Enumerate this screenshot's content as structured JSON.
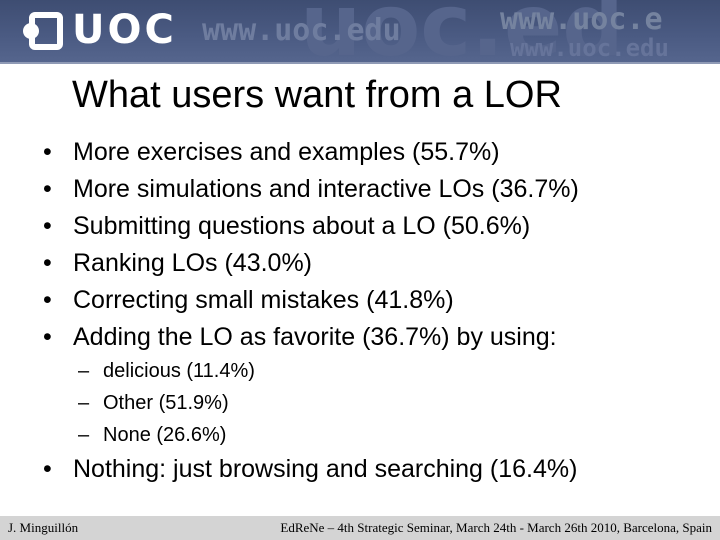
{
  "header": {
    "logo_text": "UOC",
    "url_text": "www.uoc.edu",
    "watermark_text": "uoc.ed",
    "right_url_1": "www.uoc.e",
    "right_url_2": "www.uoc.edu",
    "logo_icon": "uoc-logo-icon",
    "colors": {
      "background": "#4a5a82",
      "logo": "#ffffff"
    }
  },
  "slide": {
    "title": "What users want from a LOR",
    "bullet_marker": "•",
    "sub_marker": "–",
    "bullets": [
      "More exercises and examples (55.7%)",
      "More simulations and interactive LOs (36.7%)",
      "Submitting questions about a LO (50.6%)",
      "Ranking LOs (43.0%)",
      "Correcting small mistakes (41.8%)",
      "Adding the LO as favorite (36.7%) by using:"
    ],
    "sub_bullets": [
      "delicious (11.4%)",
      "Other (51.9%)",
      "None (26.6%)"
    ],
    "last_bullet": "Nothing: just browsing and searching (16.4%)"
  },
  "footer": {
    "author": "J. Minguillón",
    "event": "EdReNe – 4th Strategic Seminar, March 24th - March 26th 2010, Barcelona, Spain",
    "colors": {
      "background": "#d4d4d4"
    }
  }
}
